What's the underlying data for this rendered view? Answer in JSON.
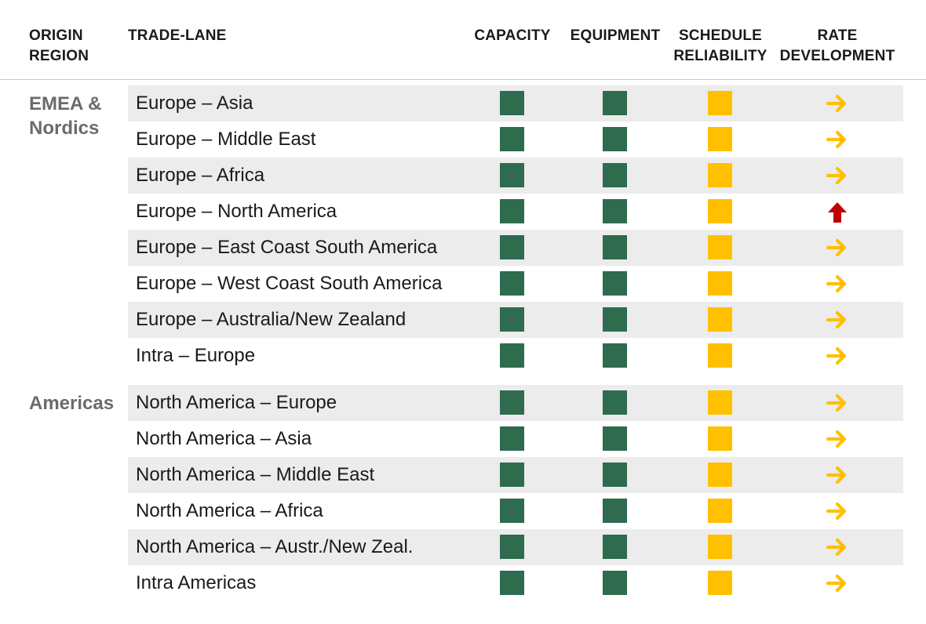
{
  "headers": {
    "origin_region": [
      "ORIGIN",
      "REGION"
    ],
    "trade_lane": "TRADE-LANE",
    "capacity": "CAPACITY",
    "equipment": "EQUIPMENT",
    "schedule_reliability": [
      "SCHEDULE",
      "RELIABILITY"
    ],
    "rate_development": [
      "RATE",
      "DEVELOPMENT"
    ]
  },
  "colors": {
    "green": "#2e6b4f",
    "yellow": "#ffc000",
    "red": "#c00000",
    "row_shade": "#ececec",
    "region_text": "#6b6b6b"
  },
  "regions": [
    {
      "name_lines": [
        "EMEA &",
        "Nordics"
      ],
      "lanes": [
        {
          "lane": "Europe – Asia",
          "capacity": "green",
          "equipment": "green",
          "schedule_reliability": "yellow",
          "rate": "flat"
        },
        {
          "lane": "Europe – Middle East",
          "capacity": "green",
          "equipment": "green",
          "schedule_reliability": "yellow",
          "rate": "flat"
        },
        {
          "lane": "Europe – Africa",
          "capacity": "green",
          "equipment": "green",
          "schedule_reliability": "yellow",
          "rate": "flat"
        },
        {
          "lane": "Europe – North America",
          "capacity": "green",
          "equipment": "green",
          "schedule_reliability": "yellow",
          "rate": "up"
        },
        {
          "lane": "Europe – East Coast South America",
          "capacity": "green",
          "equipment": "green",
          "schedule_reliability": "yellow",
          "rate": "flat"
        },
        {
          "lane": "Europe – West Coast South America",
          "capacity": "green",
          "equipment": "green",
          "schedule_reliability": "yellow",
          "rate": "flat"
        },
        {
          "lane": "Europe – Australia/New Zealand",
          "capacity": "green",
          "equipment": "green",
          "schedule_reliability": "yellow",
          "rate": "flat"
        },
        {
          "lane": "Intra – Europe",
          "capacity": "green",
          "equipment": "green",
          "schedule_reliability": "yellow",
          "rate": "flat"
        }
      ]
    },
    {
      "name_lines": [
        "Americas"
      ],
      "lanes": [
        {
          "lane": "North America – Europe",
          "capacity": "green",
          "equipment": "green",
          "schedule_reliability": "yellow",
          "rate": "flat"
        },
        {
          "lane": "North America – Asia",
          "capacity": "green",
          "equipment": "green",
          "schedule_reliability": "yellow",
          "rate": "flat"
        },
        {
          "lane": "North America – Middle East",
          "capacity": "green",
          "equipment": "green",
          "schedule_reliability": "yellow",
          "rate": "flat"
        },
        {
          "lane": "North America – Africa",
          "capacity": "green",
          "equipment": "green",
          "schedule_reliability": "yellow",
          "rate": "flat"
        },
        {
          "lane": "North America – Austr./New Zeal.",
          "capacity": "green",
          "equipment": "green",
          "schedule_reliability": "yellow",
          "rate": "flat"
        },
        {
          "lane": "Intra Americas",
          "capacity": "green",
          "equipment": "green",
          "schedule_reliability": "yellow",
          "rate": "flat"
        }
      ]
    }
  ]
}
